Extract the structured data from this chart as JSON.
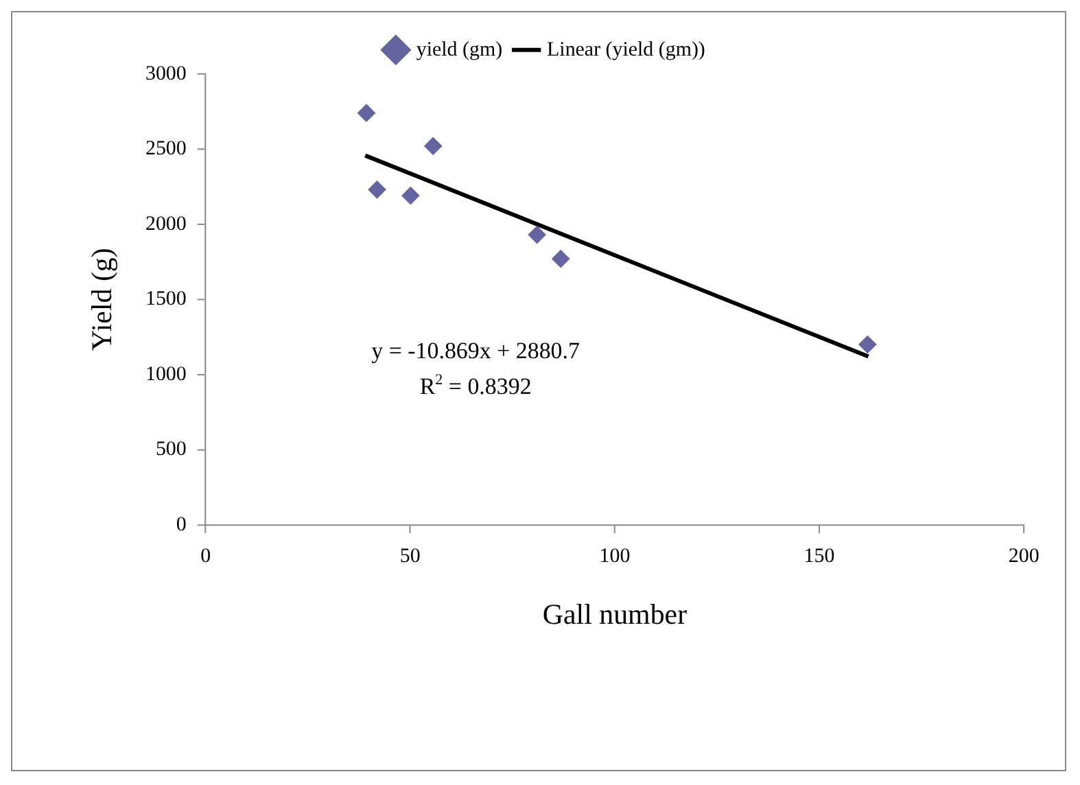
{
  "chart_data": {
    "type": "scatter",
    "xlabel": "Gall number",
    "ylabel": "Yield (g)",
    "xlim": [
      0,
      200
    ],
    "xticks": [
      0,
      50,
      100,
      150,
      200
    ],
    "ylim": [
      0,
      3000
    ],
    "yticks": [
      0,
      500,
      1000,
      1500,
      2000,
      2500,
      3000
    ],
    "grid": false,
    "legend": "top",
    "marker": "diamond",
    "series": [
      {
        "name": "yield (gm)",
        "color": "#6464a0",
        "x": [
          39.3,
          41.9,
          50.1,
          55.6,
          81,
          86.8,
          161.8
        ],
        "values": [
          2740,
          2230,
          2190,
          2520,
          1930,
          1770,
          1200
        ]
      },
      {
        "name": "Linear (yield (gm))",
        "type": "line",
        "color": "#000000",
        "marker": "none",
        "x": [
          39,
          162
        ],
        "values": [
          2457,
          1120
        ]
      }
    ],
    "annotations": [
      "y = -10.869x + 2880.7",
      "R$^{2}$ = 0.8392"
    ]
  }
}
